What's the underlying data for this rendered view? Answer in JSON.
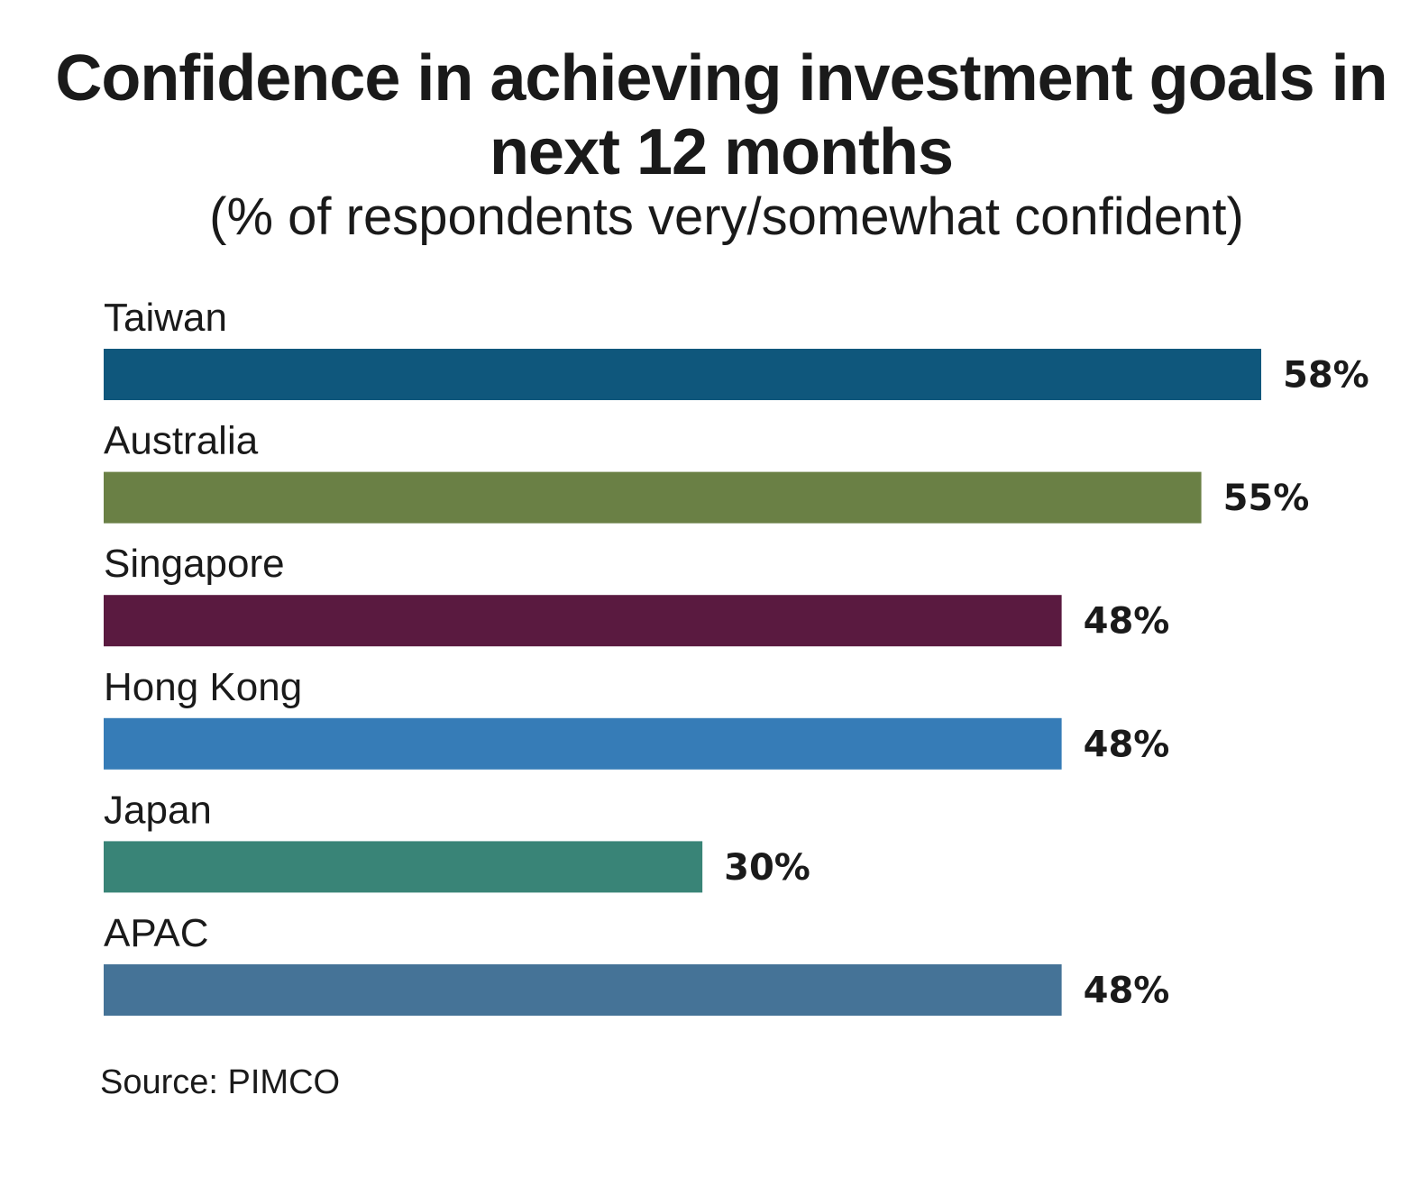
{
  "chart_data": {
    "type": "bar",
    "orientation": "horizontal",
    "title": "Confidence in achieving investment goals in next 12 months",
    "subtitle": "(% of respondents very/somewhat confident)",
    "categories": [
      "Taiwan",
      "Australia",
      "Singapore",
      "Hong Kong",
      "Japan",
      "APAC"
    ],
    "values": [
      58,
      55,
      48,
      48,
      30,
      48
    ],
    "value_labels": [
      "58%",
      "55%",
      "48%",
      "48%",
      "30%",
      "48%"
    ],
    "colors": [
      "#0f577c",
      "#6a8045",
      "#5a1a40",
      "#367cb7",
      "#398477",
      "#457397"
    ],
    "xlim": [
      0,
      58
    ],
    "unit": "%",
    "grid": false,
    "legend": "none",
    "source": "Source: PIMCO"
  }
}
